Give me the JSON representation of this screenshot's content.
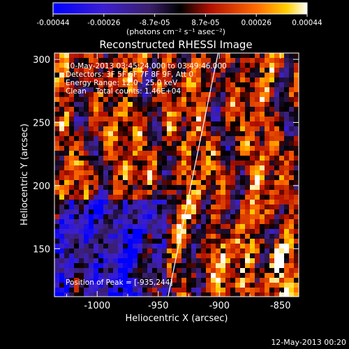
{
  "colorbar": {
    "ticks": [
      "-0.00044",
      "-0.00026",
      "-8.7e-05",
      "8.7e-05",
      "0.00026",
      "0.00044"
    ],
    "units": "(photons cm⁻² s⁻¹ asec⁻²)"
  },
  "chart_data": {
    "type": "heatmap",
    "title": "Reconstructed RHESSI Image",
    "xlabel": "Heliocentric X (arcsec)",
    "ylabel": "Heliocentric Y (arcsec)",
    "xlim": [
      -1035,
      -835
    ],
    "ylim": [
      112,
      305
    ],
    "xticks": [
      -1000,
      -950,
      -900,
      -850
    ],
    "xtick_labels": [
      "-1000",
      "-950",
      "-900",
      "-850"
    ],
    "yticks": [
      150,
      200,
      250,
      300
    ],
    "ytick_labels": [
      "150",
      "200",
      "250",
      "300"
    ],
    "colorscale_range": [
      -0.00044,
      0.00044
    ],
    "colormap": "blue-purple-black-red-yellow-white",
    "limb_line": [
      [
        -942,
        112
      ],
      [
        -901,
        305
      ]
    ],
    "annotations": {
      "time": "10-May-2013 03:45:24.000 to 03:49:46.000",
      "detectors": "Detectors: 3F 5F 6F 7F 8F 9F, Att 0",
      "energy": "Energy Range: 12.0 - 25.0 keV",
      "clean": "Clean    Total counts: 1.46E+04",
      "peak": "Position of Peak = [-935,244]"
    }
  },
  "footer": {
    "timestamp": "12-May-2013 00:20"
  }
}
